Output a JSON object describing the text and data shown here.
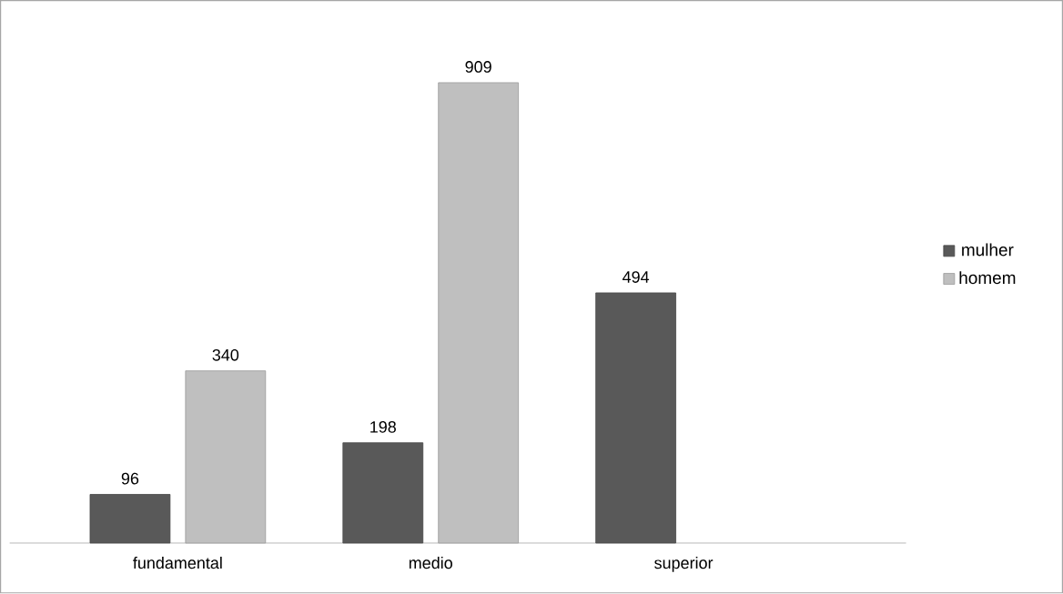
{
  "chart_data": {
    "type": "bar",
    "categories": [
      "fundamental",
      "medio",
      "superior"
    ],
    "series": [
      {
        "name": "mulher",
        "color": "#595959",
        "values": [
          96,
          198,
          494
        ]
      },
      {
        "name": "homem",
        "color": "#bfbfbf",
        "values": [
          340,
          909,
          null
        ]
      }
    ],
    "data_labels": true,
    "legend": "right"
  }
}
